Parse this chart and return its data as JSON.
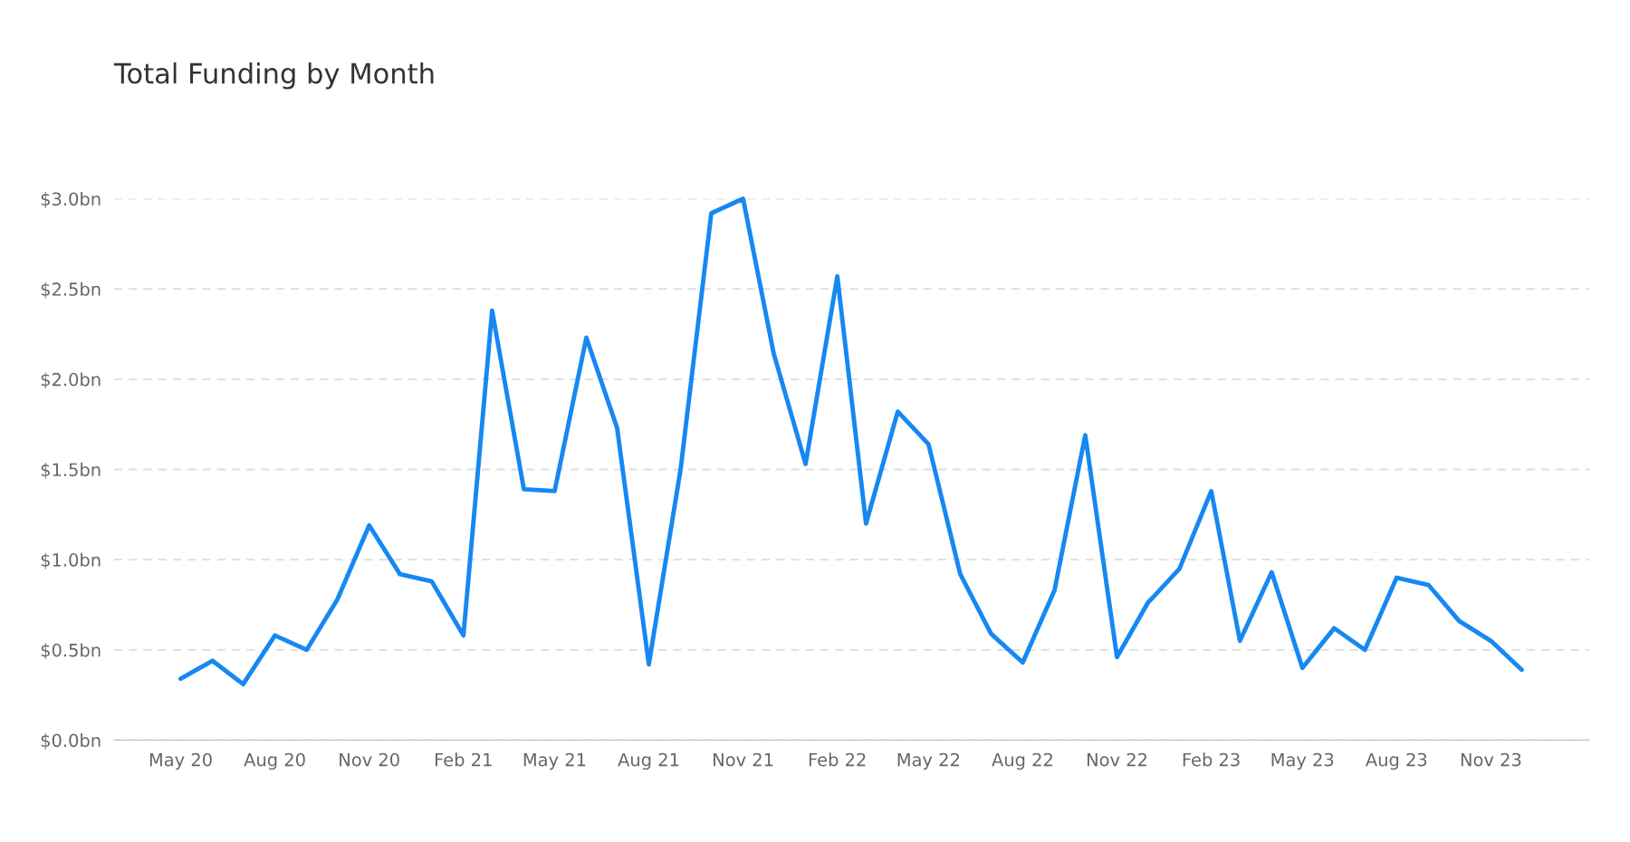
{
  "chart_data": {
    "type": "line",
    "title": "Total Funding by Month",
    "x": [
      "2020-05",
      "2020-06",
      "2020-07",
      "2020-08",
      "2020-09",
      "2020-10",
      "2020-11",
      "2020-12",
      "2021-01",
      "2021-02",
      "2021-03",
      "2021-04",
      "2021-05",
      "2021-06",
      "2021-07",
      "2021-08",
      "2021-09",
      "2021-10",
      "2021-11",
      "2021-12",
      "2022-01",
      "2022-02",
      "2022-03",
      "2022-04",
      "2022-05",
      "2022-06",
      "2022-07",
      "2022-08",
      "2022-09",
      "2022-10",
      "2022-11",
      "2022-12",
      "2023-01",
      "2023-02",
      "2023-03",
      "2023-04",
      "2023-05",
      "2023-06",
      "2023-07",
      "2023-08",
      "2023-09",
      "2023-10",
      "2023-11",
      "2023-12"
    ],
    "series": [
      {
        "color": "#1688f2",
        "values": [
          0.34,
          0.44,
          0.31,
          0.58,
          0.5,
          0.78,
          1.19,
          0.92,
          0.88,
          0.58,
          2.38,
          1.39,
          1.38,
          2.23,
          1.73,
          0.42,
          1.5,
          2.92,
          3.0,
          2.14,
          1.53,
          2.57,
          1.2,
          1.82,
          1.64,
          0.92,
          0.59,
          0.43,
          0.83,
          1.69,
          0.46,
          0.76,
          0.95,
          1.38,
          0.55,
          0.93,
          0.4,
          0.62,
          0.5,
          0.9,
          0.86,
          0.66,
          0.55,
          0.39
        ]
      }
    ],
    "xlim": [
      "2020-02-26",
      "2024-02-05"
    ],
    "xticks": [
      {
        "value": "2020-05",
        "label": "May 20"
      },
      {
        "value": "2020-08",
        "label": "Aug 20"
      },
      {
        "value": "2020-11",
        "label": "Nov 20"
      },
      {
        "value": "2021-02",
        "label": "Feb 21"
      },
      {
        "value": "2021-05",
        "label": "May 21"
      },
      {
        "value": "2021-08",
        "label": "Aug 21"
      },
      {
        "value": "2021-11",
        "label": "Nov 21"
      },
      {
        "value": "2022-02",
        "label": "Feb 22"
      },
      {
        "value": "2022-05",
        "label": "May 22"
      },
      {
        "value": "2022-08",
        "label": "Aug 22"
      },
      {
        "value": "2022-11",
        "label": "Nov 22"
      },
      {
        "value": "2023-02",
        "label": "Feb 23"
      },
      {
        "value": "2023-05",
        "label": "May 23"
      },
      {
        "value": "2023-08",
        "label": "Aug 23"
      },
      {
        "value": "2023-11",
        "label": "Nov 23"
      }
    ],
    "ylim": [
      0,
      3.0
    ],
    "yticks": [
      {
        "value": 0,
        "label": "$0.0bn"
      },
      {
        "value": 0.5,
        "label": "$0.5bn"
      },
      {
        "value": 1.0,
        "label": "$1.0bn"
      },
      {
        "value": 1.5,
        "label": "$1.5bn"
      },
      {
        "value": 2.0,
        "label": "$2.0bn"
      },
      {
        "value": 2.5,
        "label": "$2.5bn"
      },
      {
        "value": 3.0,
        "label": "$3.0bn"
      }
    ],
    "grid": "y",
    "line_style": "solid",
    "marker": "none",
    "legend": false
  }
}
